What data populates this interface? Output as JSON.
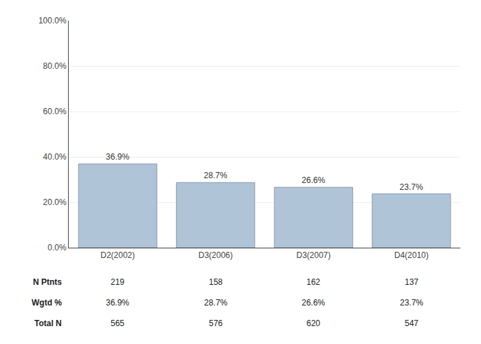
{
  "chart_data": {
    "type": "bar",
    "categories": [
      "D2(2002)",
      "D3(2006)",
      "D3(2007)",
      "D4(2010)"
    ],
    "values": [
      36.9,
      28.7,
      26.6,
      23.7
    ],
    "value_labels": [
      "36.9%",
      "28.7%",
      "26.6%",
      "23.7%"
    ],
    "data_labels": true,
    "color": "#b0c4d8",
    "ylim": [
      0,
      100
    ],
    "yticks": [
      {
        "value": 0,
        "label": "0.0%"
      },
      {
        "value": 20,
        "label": "20.0%"
      },
      {
        "value": 40,
        "label": "40.0%"
      },
      {
        "value": 60,
        "label": "60.0%"
      },
      {
        "value": 80,
        "label": "80.0%"
      },
      {
        "value": 100,
        "label": "100.0%"
      }
    ],
    "grid": true,
    "table": [
      {
        "name": "N Ptnts",
        "values": [
          219,
          158,
          162,
          137
        ]
      },
      {
        "name": "Wgtd %",
        "values": [
          36.9,
          28.7,
          26.6,
          23.7
        ],
        "value_labels": [
          "36.9%",
          "28.7%",
          "26.6%",
          "23.7%"
        ]
      },
      {
        "name": "Total N",
        "values": [
          565,
          576,
          620,
          547
        ]
      }
    ]
  }
}
